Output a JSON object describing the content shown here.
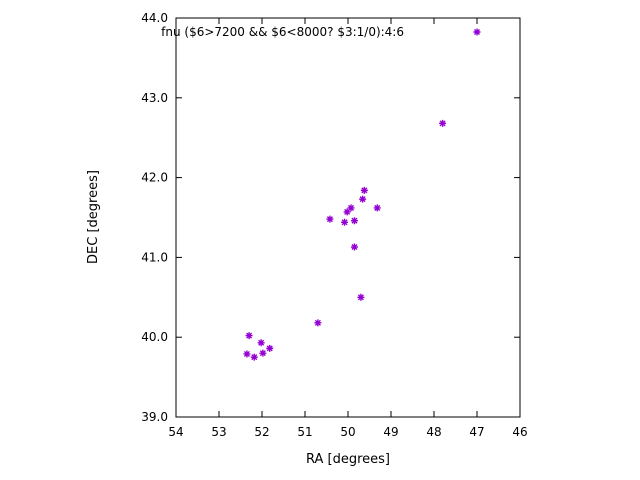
{
  "chart_data": {
    "type": "scatter",
    "title": "",
    "legend": {
      "label": "fnu ($6>7200 && $6<8000? $3:1/0):4:6",
      "position": "top-inside"
    },
    "xlabel": "RA [degrees]",
    "ylabel": "DEC [degrees]",
    "xlim": [
      54,
      46
    ],
    "ylim": [
      39.0,
      44.0
    ],
    "x_ticks": [
      54,
      53,
      52,
      51,
      50,
      49,
      48,
      47,
      46
    ],
    "y_ticks": [
      39.0,
      40.0,
      41.0,
      42.0,
      43.0,
      44.0
    ],
    "x_axis_reversed": true,
    "grid": false,
    "marker": {
      "shape": "asterisk",
      "color": "#9400d3",
      "size": 3.5
    },
    "points": [
      {
        "ra": 47.8,
        "dec": 42.68
      },
      {
        "ra": 49.62,
        "dec": 41.84
      },
      {
        "ra": 49.66,
        "dec": 41.73
      },
      {
        "ra": 50.42,
        "dec": 41.48
      },
      {
        "ra": 50.02,
        "dec": 41.57
      },
      {
        "ra": 49.93,
        "dec": 41.62
      },
      {
        "ra": 50.08,
        "dec": 41.44
      },
      {
        "ra": 49.85,
        "dec": 41.46
      },
      {
        "ra": 49.32,
        "dec": 41.62
      },
      {
        "ra": 49.85,
        "dec": 41.13
      },
      {
        "ra": 49.7,
        "dec": 40.5
      },
      {
        "ra": 50.7,
        "dec": 40.18
      },
      {
        "ra": 52.3,
        "dec": 40.02
      },
      {
        "ra": 52.02,
        "dec": 39.93
      },
      {
        "ra": 52.35,
        "dec": 39.79
      },
      {
        "ra": 52.18,
        "dec": 39.75
      },
      {
        "ra": 51.98,
        "dec": 39.8
      },
      {
        "ra": 51.82,
        "dec": 39.86
      }
    ]
  }
}
